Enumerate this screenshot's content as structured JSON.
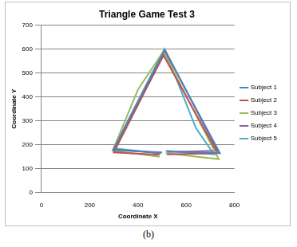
{
  "chart_data": {
    "type": "scatter",
    "title": "Triangle Game Test 3",
    "caption": "(b)",
    "x_label": "Coordinate X",
    "y_label": "Coordinate Y",
    "xlim": [
      0,
      800
    ],
    "xticks": [
      0,
      200,
      400,
      600,
      800
    ],
    "ylim": [
      0,
      700
    ],
    "yticks": [
      0,
      100,
      200,
      300,
      400,
      500,
      600,
      700
    ],
    "grid": true,
    "legend": "right",
    "marker": "none",
    "line_style": "solid",
    "series": [
      {
        "name": "Subject 1",
        "color": "#4f81bd",
        "x": [
          500,
          297,
          510,
          740,
          520
        ],
        "values": [
          168,
          178,
          595,
          165,
          172
        ]
      },
      {
        "name": "Subject 2",
        "color": "#c0504d",
        "x": [
          490,
          300,
          505,
          730,
          520
        ],
        "values": [
          158,
          168,
          575,
          165,
          160
        ]
      },
      {
        "name": "Subject 3",
        "color": "#9bbb59",
        "x": [
          490,
          295,
          400,
          505,
          735,
          515
        ],
        "values": [
          150,
          175,
          430,
          590,
          140,
          165
        ]
      },
      {
        "name": "Subject 4",
        "color": "#8064a2",
        "x": [
          495,
          300,
          515,
          730,
          520
        ],
        "values": [
          165,
          180,
          590,
          175,
          170
        ]
      },
      {
        "name": "Subject 5",
        "color": "#4bacc6",
        "x": [
          495,
          300,
          510,
          640,
          715,
          515
        ],
        "values": [
          165,
          185,
          600,
          270,
          160,
          175
        ]
      }
    ]
  }
}
